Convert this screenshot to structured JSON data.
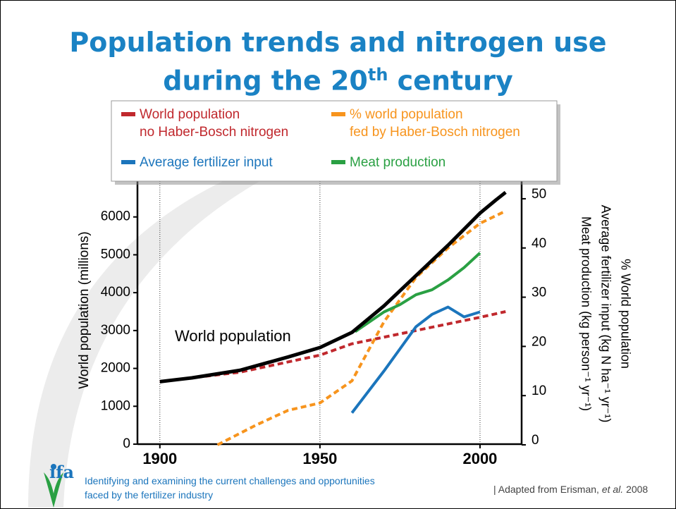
{
  "chart_data": {
    "type": "line",
    "title": {
      "line1": "Population trends and nitrogen use",
      "line2": "during the 20",
      "sup": "th",
      "line2_end": " century"
    },
    "ylabel": "World population (millions)",
    "y2label": [
      "% World population",
      "Average fertilizer input (kg N ha⁻¹ yr⁻¹)",
      "Meat production (kg person⁻¹ yr⁻¹)"
    ],
    "xlim": [
      1893,
      2013
    ],
    "xticks": [
      1900,
      1950,
      2000
    ],
    "ylim": [
      0,
      7000
    ],
    "yticks": [
      0,
      1000,
      2000,
      3000,
      4000,
      5000,
      6000
    ],
    "y2lim": [
      0,
      54
    ],
    "y2ticks": [
      0,
      10,
      20,
      30,
      40,
      50
    ],
    "grid": "x",
    "main_line": {
      "name": "World population",
      "color": "#000000",
      "x": [
        1900,
        1910,
        1925,
        1940,
        1950,
        1960,
        1970,
        1980,
        1990,
        2000,
        2005,
        2008
      ],
      "values": [
        1650,
        1750,
        1950,
        2300,
        2550,
        2950,
        3650,
        4450,
        5250,
        6100,
        6450,
        6650
      ]
    },
    "series": [
      {
        "name": "World population\nno Haber-Bosch nitrogen",
        "color": "#c0282d",
        "dashed": true,
        "x": [
          1900,
          1925,
          1950,
          1960,
          1980,
          2000,
          2008
        ],
        "values": [
          1650,
          1900,
          2350,
          2650,
          3000,
          3350,
          3500
        ]
      },
      {
        "name": "% world population\nfed by Haber-Bosch nitrogen",
        "color": "#f7941d",
        "dashed": true,
        "axis": "y2",
        "x": [
          1918,
          1930,
          1940,
          1950,
          1960,
          1970,
          1980,
          1990,
          2000,
          2008
        ],
        "values": [
          0,
          4,
          7,
          8.5,
          13,
          25,
          34,
          40,
          45,
          47.5
        ]
      },
      {
        "name": "Average fertilizer input",
        "color": "#1b75bc",
        "axis": "y2",
        "x": [
          1960,
          1970,
          1975,
          1980,
          1985,
          1990,
          1995,
          2000
        ],
        "values": [
          6.5,
          15,
          19.5,
          24,
          26.5,
          28,
          26,
          27
        ]
      },
      {
        "name": "Meat production",
        "color": "#2aa043",
        "axis": "y2",
        "x": [
          1961,
          1970,
          1975,
          1980,
          1985,
          1990,
          1995,
          2000
        ],
        "values": [
          23,
          27,
          28.5,
          30.5,
          31.5,
          33.5,
          36,
          39
        ]
      }
    ]
  },
  "footer": {
    "logo": "ifa",
    "tagline": "Identifying and examining the current challenges and opportunities\nfaced by the fertilizer industry",
    "source_start": "| Adapted from Erisman, ",
    "source_italic": "et al.",
    "source_end": " 2008"
  }
}
